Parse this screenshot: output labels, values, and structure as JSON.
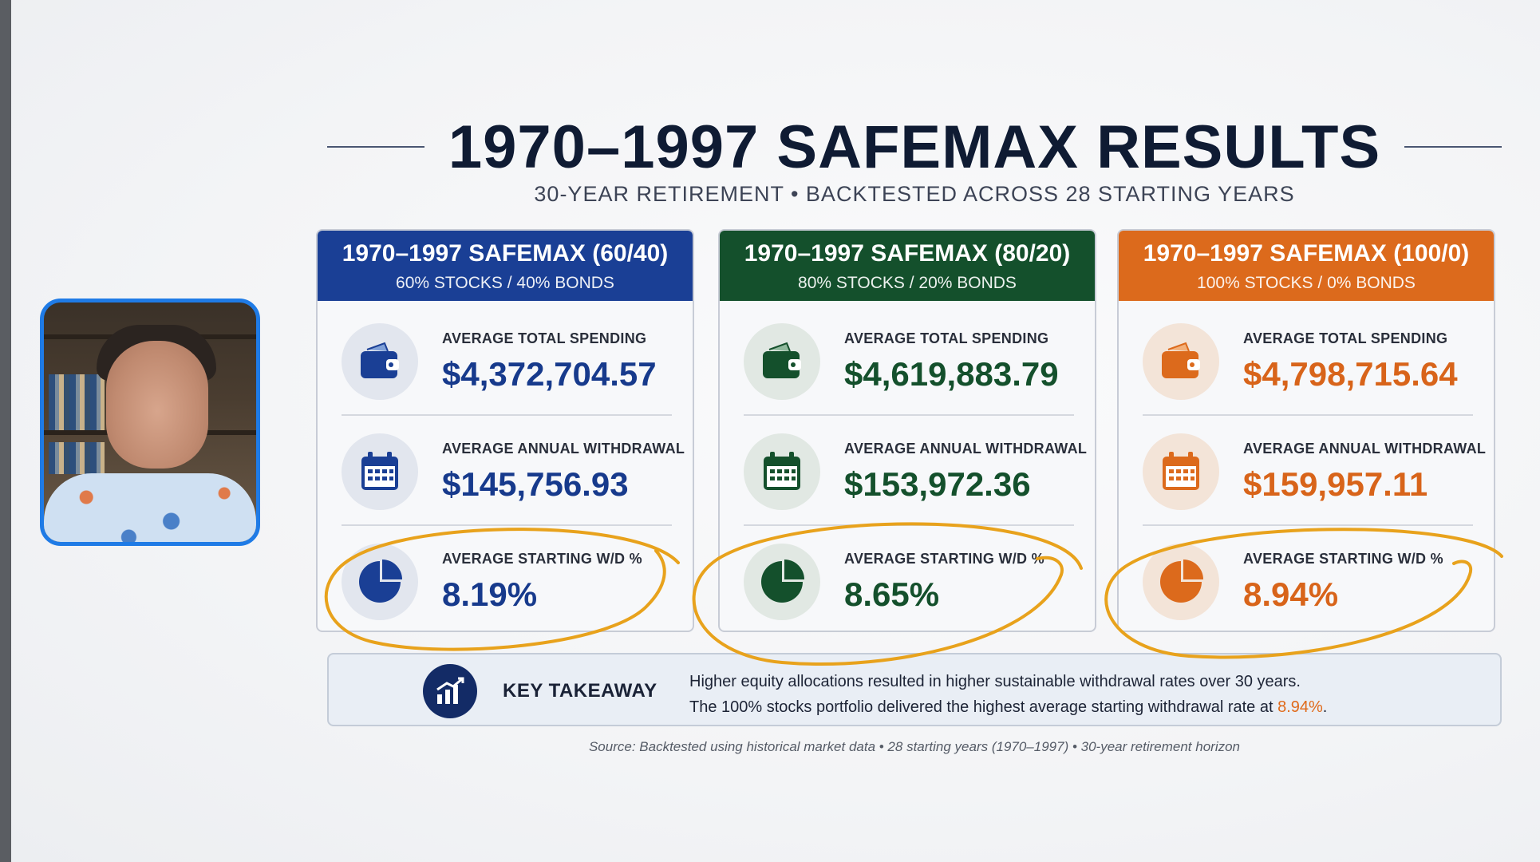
{
  "slide": {
    "title": "1970–1997 SAFEMAX RESULTS",
    "subtitle": "30-YEAR RETIREMENT • BACKTESTED ACROSS 28 STARTING YEARS",
    "cards": [
      {
        "title": "1970–1997 SAFEMAX (60/40)",
        "subtitle": "60% STOCKS / 40% BONDS",
        "accent": "#1a3f95",
        "stats": [
          {
            "icon": "wallet-icon",
            "label": "AVERAGE TOTAL SPENDING",
            "value": "$4,372,704.57"
          },
          {
            "icon": "calendar-icon",
            "label": "AVERAGE ANNUAL WITHDRAWAL",
            "value": "$145,756.93"
          },
          {
            "icon": "pie-chart-icon",
            "label": "AVERAGE STARTING W/D %",
            "value": "8.19%"
          }
        ]
      },
      {
        "title": "1970–1997 SAFEMAX (80/20)",
        "subtitle": "80% STOCKS / 20% BONDS",
        "accent": "#14502c",
        "stats": [
          {
            "icon": "wallet-icon",
            "label": "AVERAGE TOTAL SPENDING",
            "value": "$4,619,883.79"
          },
          {
            "icon": "calendar-icon",
            "label": "AVERAGE ANNUAL WITHDRAWAL",
            "value": "$153,972.36"
          },
          {
            "icon": "pie-chart-icon",
            "label": "AVERAGE STARTING W/D %",
            "value": "8.65%"
          }
        ]
      },
      {
        "title": "1970–1997 SAFEMAX (100/0)",
        "subtitle": "100% STOCKS / 0% BONDS",
        "accent": "#dc6a1c",
        "stats": [
          {
            "icon": "wallet-icon",
            "label": "AVERAGE TOTAL SPENDING",
            "value": "$4,798,715.64"
          },
          {
            "icon": "calendar-icon",
            "label": "AVERAGE ANNUAL WITHDRAWAL",
            "value": "$159,957.11"
          },
          {
            "icon": "pie-chart-icon",
            "label": "AVERAGE STARTING W/D %",
            "value": "8.94%"
          }
        ]
      }
    ],
    "takeaway": {
      "icon": "growth-chart-icon",
      "label": "KEY TAKEAWAY",
      "line1": "Higher equity allocations resulted in higher sustainable withdrawal rates over 30 years.",
      "line2_prefix": "The 100% stocks portfolio delivered the highest average starting withdrawal rate at ",
      "line2_highlight": "8.94%",
      "line2_suffix": "."
    },
    "source": "Source: Backtested using historical market data  •  28 starting years (1970–1997)  •  30-year retirement horizon"
  },
  "annotation_color": "#e8a21c",
  "webcam_border_color": "#1f7be6"
}
